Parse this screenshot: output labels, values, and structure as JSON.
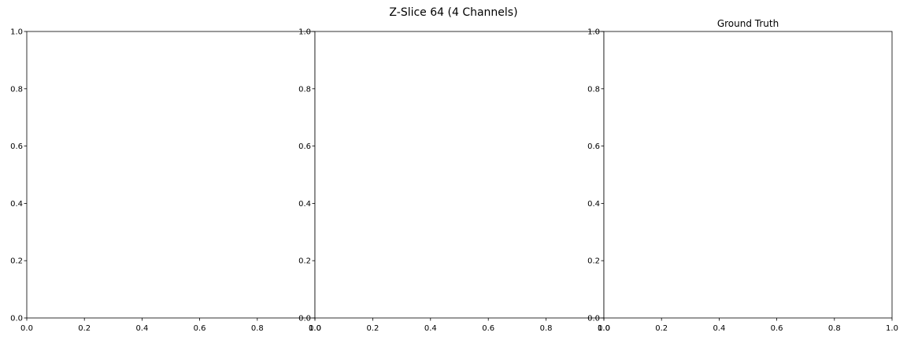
{
  "figure": {
    "suptitle": "Z-Slice 64 (4 Channels)"
  },
  "chart_data": [
    {
      "type": "scatter",
      "title": "",
      "xlabel": "",
      "ylabel": "",
      "xlim": [
        0.0,
        1.0
      ],
      "ylim": [
        0.0,
        1.0
      ],
      "xticks": [
        "0.0",
        "0.2",
        "0.4",
        "0.6",
        "0.8",
        "1.0"
      ],
      "yticks": [
        "0.0",
        "0.2",
        "0.4",
        "0.6",
        "0.8",
        "1.0"
      ],
      "grid": false,
      "series": []
    },
    {
      "type": "scatter",
      "title": "",
      "xlabel": "",
      "ylabel": "",
      "xlim": [
        0.0,
        1.0
      ],
      "ylim": [
        0.0,
        1.0
      ],
      "xticks": [
        "0.0",
        "0.2",
        "0.4",
        "0.6",
        "0.8",
        "1.0"
      ],
      "yticks": [
        "0.0",
        "0.2",
        "0.4",
        "0.6",
        "0.8",
        "1.0"
      ],
      "grid": false,
      "series": []
    },
    {
      "type": "scatter",
      "title": "Ground Truth",
      "xlabel": "",
      "ylabel": "",
      "xlim": [
        0.0,
        1.0
      ],
      "ylim": [
        0.0,
        1.0
      ],
      "xticks": [
        "0.0",
        "0.2",
        "0.4",
        "0.6",
        "0.8",
        "1.0"
      ],
      "yticks": [
        "0.0",
        "0.2",
        "0.4",
        "0.6",
        "0.8",
        "1.0"
      ],
      "grid": false,
      "series": []
    }
  ]
}
